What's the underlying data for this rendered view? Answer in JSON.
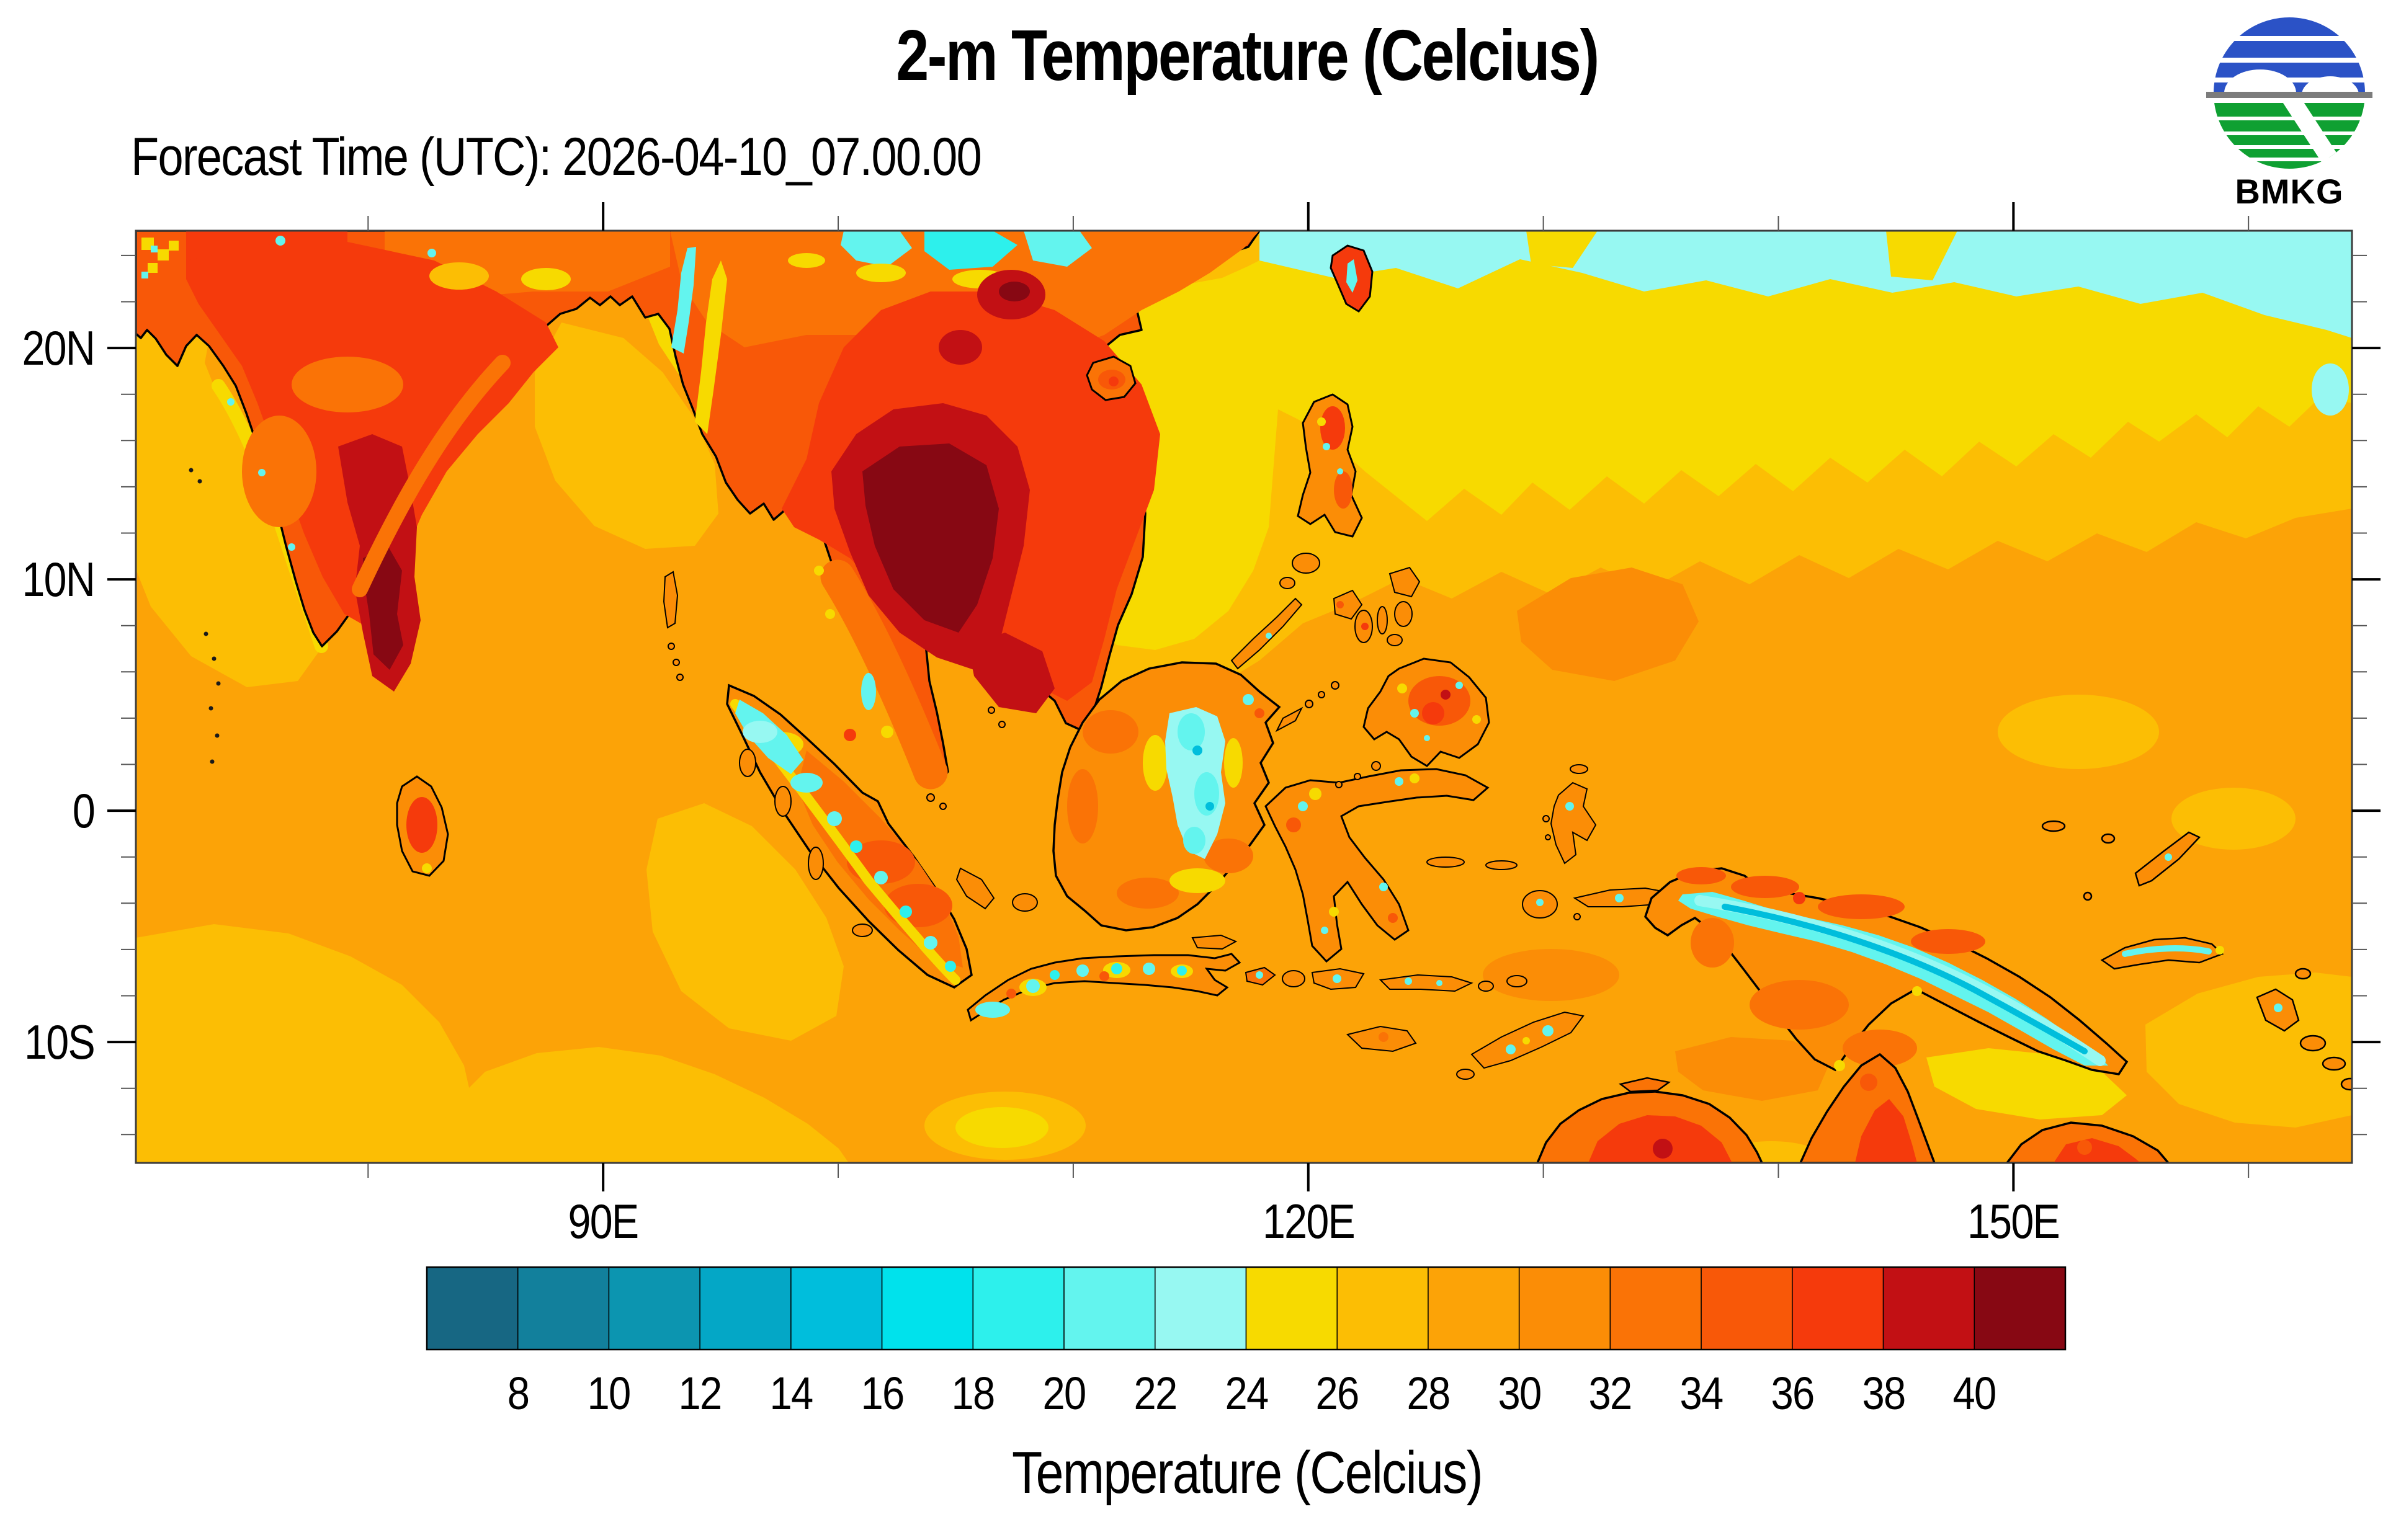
{
  "title": "2-m Temperature (Celcius)",
  "subtitle": "Forecast Time (UTC): 2026-04-10_07.00.00",
  "logo": {
    "text": "BMKG",
    "blue": "#2B52C6",
    "green": "#0FA032",
    "gray": "#7C7C7C"
  },
  "map": {
    "y_axis": {
      "major": [
        {
          "lat": 20,
          "label": "20N"
        },
        {
          "lat": 10,
          "label": "10N"
        },
        {
          "lat": 0,
          "label": "0"
        },
        {
          "lat": -10,
          "label": "10S"
        }
      ],
      "minor_lats": [
        24,
        22,
        18,
        16,
        14,
        12,
        8,
        6,
        4,
        2,
        -2,
        -4,
        -6,
        -8,
        -12,
        -14
      ]
    },
    "x_axis": {
      "major": [
        {
          "lon": 90,
          "label": "90E"
        },
        {
          "lon": 120,
          "label": "120E"
        },
        {
          "lon": 150,
          "label": "150E"
        }
      ],
      "minor_lons": [
        80,
        100,
        110,
        130,
        140,
        160
      ]
    }
  },
  "colorbar": {
    "title": "Temperature (Celcius)",
    "tick_labels": [
      "8",
      "10",
      "12",
      "14",
      "16",
      "18",
      "20",
      "22",
      "24",
      "26",
      "28",
      "30",
      "32",
      "34",
      "36",
      "38",
      "40"
    ],
    "colors": [
      "#176783",
      "#12809C",
      "#0C95B0",
      "#04A7C6",
      "#00BEDC",
      "#00E2EC",
      "#2DF0EC",
      "#63F4EE",
      "#97F8F2",
      "#F7DA00",
      "#FCBE04",
      "#FCA307",
      "#FB8D06",
      "#FA7306",
      "#F85808",
      "#F53A0C",
      "#C21014",
      "#870813"
    ]
  },
  "chart_data": {
    "type": "heatmap",
    "variable": "2-m Temperature",
    "units": "Celcius",
    "levels_celcius": [
      8,
      10,
      12,
      14,
      16,
      18,
      20,
      22,
      24,
      26,
      28,
      30,
      32,
      34,
      36,
      38,
      40
    ],
    "palette": [
      "#176783",
      "#12809C",
      "#0C95B0",
      "#04A7C6",
      "#00BEDC",
      "#00E2EC",
      "#2DF0EC",
      "#63F4EE",
      "#97F8F2",
      "#F7DA00",
      "#FCBE04",
      "#FCA307",
      "#FB8D06",
      "#FA7306",
      "#F85808",
      "#F53A0C",
      "#C21014",
      "#870813"
    ],
    "lon_range_deg_east": [
      70,
      164
    ],
    "lat_range_deg_north": [
      -15,
      25
    ],
    "readings": {
      "india_interior_c": "34-40+",
      "indochina_interior_c": "36-40+",
      "northern_australia_c": "32-38",
      "tropical_ocean_c": "26-30",
      "south_china_sea_c": "24-28",
      "nw_pacific_northern_edge_c": "22-26",
      "island_mountain_ridges_c": "14-24"
    }
  }
}
